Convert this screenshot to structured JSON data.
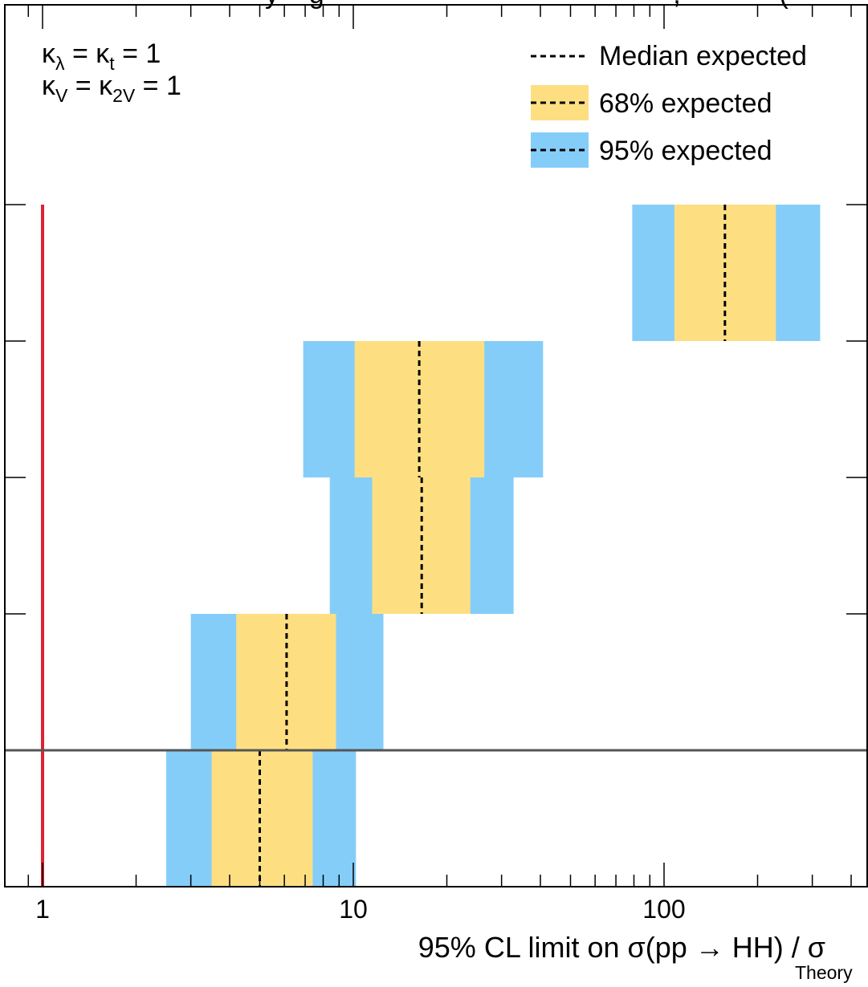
{
  "header_fragment": "y    g                                              ,             (            )",
  "chart_data": {
    "type": "bar",
    "orientation": "horizontal",
    "x_scale": "log",
    "xlim": [
      0.87,
      420
    ],
    "xlabel_main": "95% CL limit on σ(pp → HH) / σ",
    "xlabel_sub": "Theory",
    "x_ticks": [
      "1",
      "10",
      "100"
    ],
    "annotations": [
      {
        "main": "κ",
        "sub1": "λ",
        "mid": " = κ",
        "sub2": "t",
        "tail": " = 1"
      },
      {
        "main": "κ",
        "sub1": "V",
        "mid": " = κ",
        "sub2": "2V",
        "tail": " = 1"
      }
    ],
    "legend": {
      "placement": "top-right",
      "entries": [
        "Median expected",
        "68% expected",
        "95% expected"
      ]
    },
    "reference_line": {
      "x": 1,
      "color": "#dd2233"
    },
    "colors": {
      "band68": "#fddf82",
      "band95": "#85cdf9",
      "median": "#000000",
      "divider": "#555555"
    },
    "rows": [
      {
        "median": 157,
        "lo68": 108,
        "hi68": 229,
        "lo95": 79,
        "hi95": 318
      },
      {
        "median": 16.3,
        "lo68": 10.1,
        "hi68": 26.4,
        "lo95": 6.9,
        "hi95": 40.8
      },
      {
        "median": 16.6,
        "lo68": 11.5,
        "hi68": 23.8,
        "lo95": 8.4,
        "hi95": 32.8
      },
      {
        "median": 6.1,
        "lo68": 4.2,
        "hi68": 8.8,
        "lo95": 3.0,
        "hi95": 12.5
      },
      {
        "median": 5.0,
        "lo68": 3.5,
        "hi68": 7.4,
        "lo95": 2.5,
        "hi95": 10.2
      }
    ]
  }
}
